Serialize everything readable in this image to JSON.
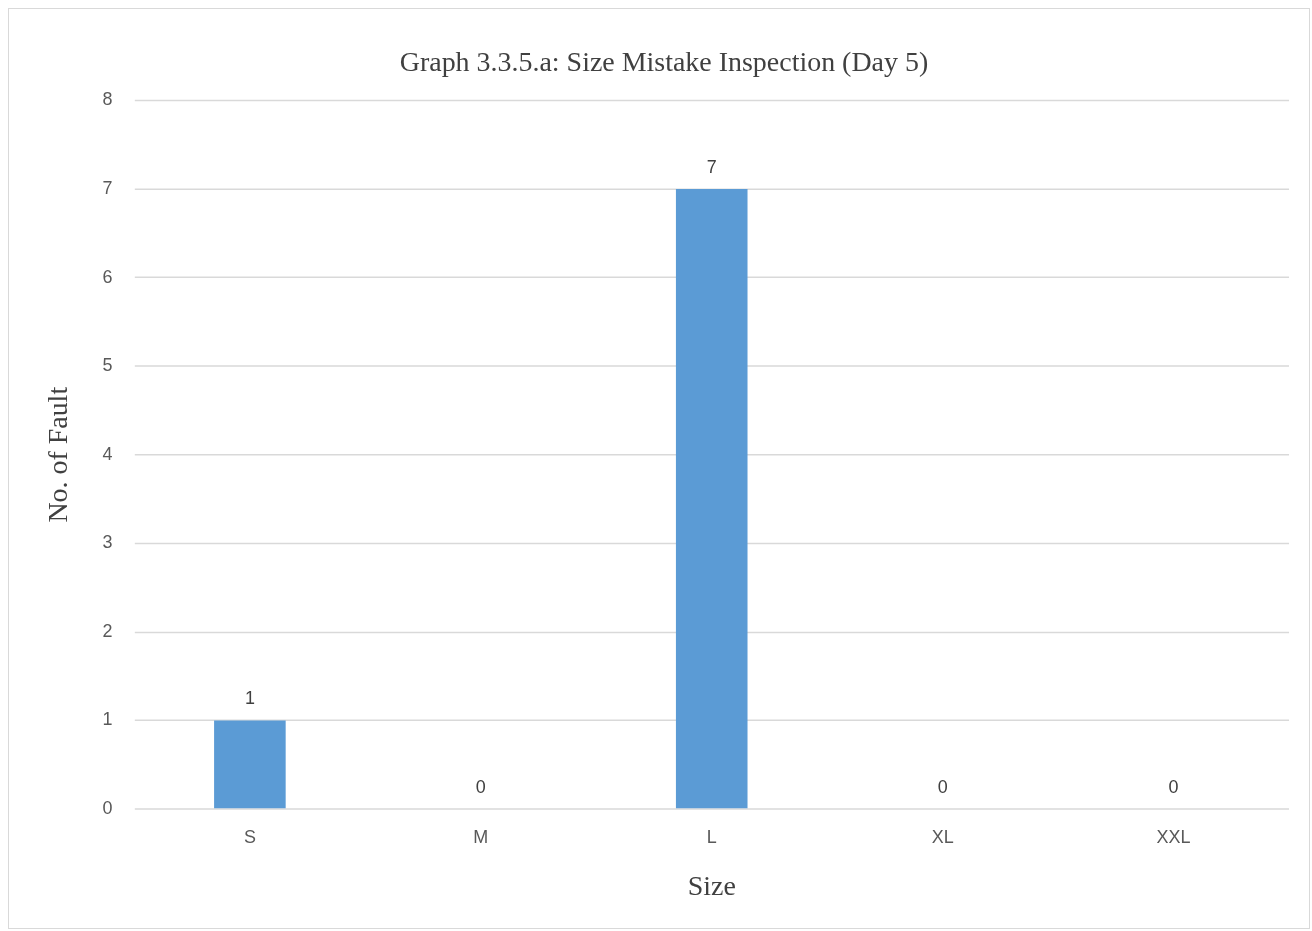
{
  "chart_data": {
    "type": "bar",
    "title": "Graph 3.3.5.a: Size Mistake Inspection (Day 5)",
    "xlabel": "Size",
    "ylabel": "No. of Fault",
    "categories": [
      "S",
      "M",
      "L",
      "XL",
      "XXL"
    ],
    "values": [
      1,
      0,
      7,
      0,
      0
    ],
    "color": "#5b9bd5",
    "ylim": [
      0,
      8
    ],
    "yticks": [
      0,
      1,
      2,
      3,
      4,
      5,
      6,
      7,
      8
    ],
    "grid": "y",
    "legend": false,
    "data_labels": true
  }
}
